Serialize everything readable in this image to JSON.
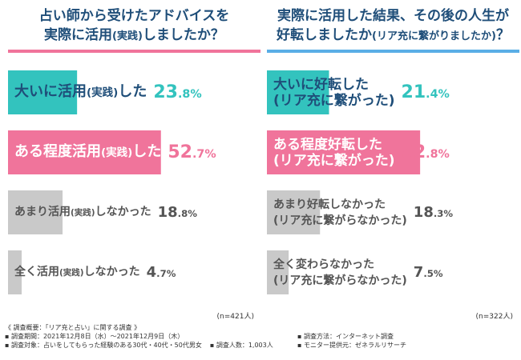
{
  "chart_data": [
    {
      "type": "bar",
      "title": "占い師から受けたアドバイスを実際に活用(実践)しましたか？",
      "title_lines": [
        "占い師から受けたアドバイスを",
        "実際に活用",
        "(実践)",
        "しましたか？"
      ],
      "categories": [
        "大いに活用(実践)した",
        "ある程度活用(実践)した",
        "あまり活用(実践)しなかった",
        "全く活用(実践)しなかった"
      ],
      "category_parts": [
        [
          "大いに活用",
          "(実践)",
          "した"
        ],
        [
          "ある程度活用",
          "(実践)",
          "した"
        ],
        [
          "あまり活用",
          "(実践)",
          "しなかった"
        ],
        [
          "全く活用",
          "(実践)",
          "しなかった"
        ]
      ],
      "values": [
        23.8,
        52.7,
        18.8,
        4.7
      ],
      "value_labels": [
        [
          "23",
          ".8%"
        ],
        [
          "52",
          ".7%"
        ],
        [
          "18",
          ".8%"
        ],
        [
          "4",
          ".7%"
        ]
      ],
      "colors": [
        "#33c3be",
        "#f0749b",
        "#c9c9c9",
        "#c9c9c9"
      ],
      "text_colors": [
        "#1f4e79",
        "#ffffff",
        "#555555",
        "#555555"
      ],
      "pct_colors": [
        "#33c3be",
        "#f0749b",
        "#555555",
        "#555555"
      ],
      "label_sizes": [
        18,
        18,
        14,
        14
      ],
      "pct_sizes": [
        22,
        22,
        18,
        18
      ],
      "highlight": [
        true,
        true,
        false,
        false
      ],
      "sample": "(n=421人)",
      "underline_color": "#f0749b"
    },
    {
      "type": "bar",
      "title": "実際に活用した結果、その後の人生が好転しましたか(リア充に繋がりましたか)？",
      "title_lines": [
        "実際に活用した結果、その後の人生が",
        "好転しましたか",
        "(リア充に繋がりましたか)",
        "？"
      ],
      "categories": [
        "大いに好転した(リア充に繋がった)",
        "ある程度好転した(リア充に繋がった)",
        "あまり好転しなかった(リア充に繋がらなかった)",
        "全く変わらなかった(リア充に繋がらなかった)"
      ],
      "category_lines": [
        [
          "大いに好転した",
          "(リア充に繋がった)"
        ],
        [
          "ある程度好転した",
          "(リア充に繋がった)"
        ],
        [
          "あまり好転しなかった",
          "(リア充に繋がらなかった)"
        ],
        [
          "全く変わらなかった",
          "(リア充に繋がらなかった)"
        ]
      ],
      "values": [
        21.4,
        52.8,
        18.3,
        7.5
      ],
      "value_labels": [
        [
          "21",
          ".4%"
        ],
        [
          "52",
          ".8%"
        ],
        [
          "18",
          ".3%"
        ],
        [
          "7",
          ".5%"
        ]
      ],
      "colors": [
        "#33c3be",
        "#f0749b",
        "#c9c9c9",
        "#c9c9c9"
      ],
      "text_colors": [
        "#1f4e79",
        "#ffffff",
        "#555555",
        "#555555"
      ],
      "pct_colors": [
        "#33c3be",
        "#f0749b",
        "#555555",
        "#555555"
      ],
      "label_sizes": [
        17,
        17,
        14,
        14
      ],
      "pct_sizes": [
        22,
        22,
        18,
        18
      ],
      "highlight": [
        true,
        true,
        false,
        false
      ],
      "sample": "(n=322人)",
      "underline_color": "#5aaee6"
    }
  ],
  "footer": {
    "heading": "《 調査概要：「リア充と占い」に関する調査 》",
    "period": "▪ 調査期間：2021年12月8日（水）～2021年12月9日（木）",
    "target": "▪ 調査対象：占いをしてもらった経験のある30代・40代・50代男女",
    "count": "▪ 調査人数：1,003人",
    "method": "▪ 調査方法：インターネット調査",
    "provider": "▪ モニター提供元：ゼネラルリサーチ"
  }
}
